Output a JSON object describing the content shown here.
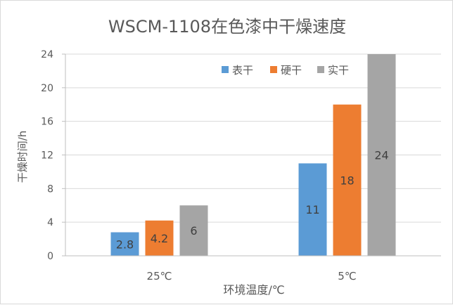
{
  "chart_data": {
    "type": "bar",
    "title": "WSCM-1108在色漆中干燥速度",
    "xlabel": "环境温度/℃",
    "ylabel": "干燥时间/h",
    "categories": [
      "25℃",
      "5℃"
    ],
    "series": [
      {
        "name": "表干",
        "values": [
          2.8,
          11
        ],
        "color": "#5b9bd5"
      },
      {
        "name": "硬干",
        "values": [
          4.2,
          18
        ],
        "color": "#ed7d31"
      },
      {
        "name": "实干",
        "values": [
          6,
          24
        ],
        "color": "#a5a5a5"
      }
    ],
    "ylim": [
      0,
      24
    ],
    "yticks": [
      "0",
      "4",
      "8",
      "12",
      "16",
      "20",
      "24"
    ],
    "data_labels": [
      [
        "2.8",
        "4.2",
        "6"
      ],
      [
        "11",
        "18",
        "24"
      ]
    ],
    "legend_position": "top-right",
    "grid": true,
    "colors": {
      "axis": "#bfbfbf",
      "grid": "#d9d9d9",
      "text": "#595959",
      "title": "#595959"
    }
  }
}
